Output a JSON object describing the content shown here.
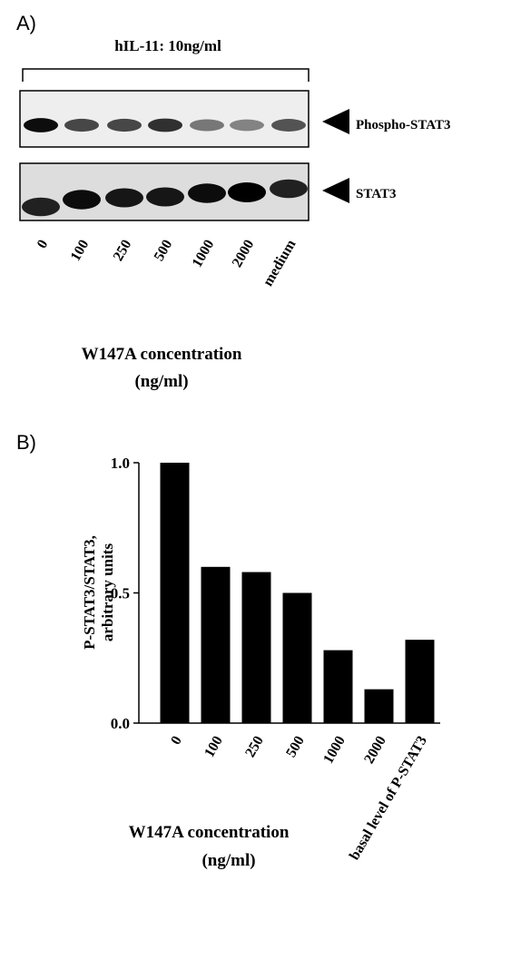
{
  "panel_a": {
    "label": "A)",
    "treatment": "hIL-11: 10ng/ml",
    "blots": [
      "Phospho-STAT3",
      "STAT3"
    ],
    "lanes": [
      "0",
      "100",
      "250",
      "500",
      "1000",
      "2000",
      "medium"
    ],
    "xlabel": [
      "W147A concentration",
      "(ng/ml)"
    ]
  },
  "chart_data": {
    "type": "bar",
    "panel_label": "B)",
    "ylabel": [
      "P-STAT3/STAT3,",
      "arbitrary units"
    ],
    "xlabel": [
      "W147A concentration",
      "(ng/ml)"
    ],
    "categories": [
      "0",
      "100",
      "250",
      "500",
      "1000",
      "2000",
      "basal level of P-STAT3"
    ],
    "values": [
      1.0,
      0.6,
      0.58,
      0.5,
      0.28,
      0.13,
      0.32
    ],
    "color": "#000000",
    "ylim": [
      0,
      1
    ],
    "yticks": [
      {
        "value": 0,
        "label": "0.0"
      },
      {
        "value": 0.5,
        "label": "0.5"
      },
      {
        "value": 1,
        "label": "1.0"
      }
    ]
  }
}
